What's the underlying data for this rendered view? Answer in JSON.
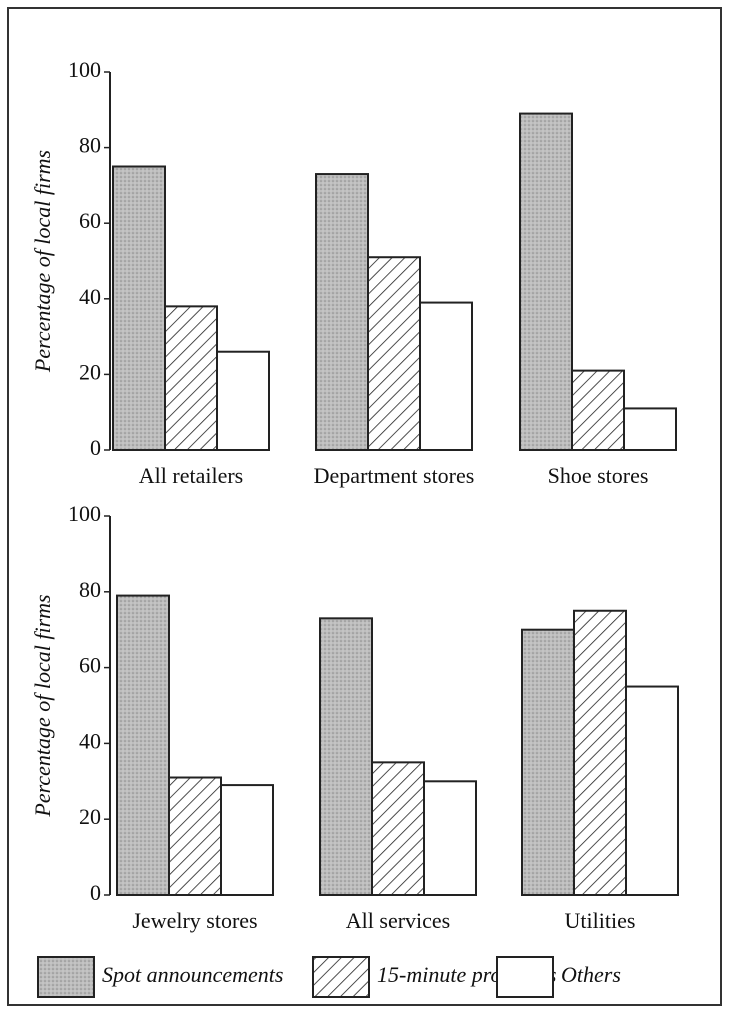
{
  "chart_data": {
    "type": "bar",
    "ylabel": "Percentage of local firms",
    "categories": [
      "All retailers",
      "Department stores",
      "Shoe stores",
      "Jewelry stores",
      "All services",
      "Utilities"
    ],
    "series": [
      {
        "name": "Spot announcements",
        "color": "#bdbdbd",
        "pattern": "dots",
        "values": [
          75,
          73,
          89,
          79,
          73,
          70
        ]
      },
      {
        "name": "15-minute programs",
        "color": "#ffffff",
        "pattern": "hatch",
        "values": [
          38,
          51,
          21,
          31,
          35,
          75
        ]
      },
      {
        "name": "Others",
        "color": "#ffffff",
        "pattern": "none",
        "values": [
          26,
          39,
          11,
          29,
          30,
          55
        ]
      }
    ],
    "ylim": [
      0,
      100
    ],
    "yticks": [
      0,
      20,
      40,
      60,
      80,
      100
    ]
  }
}
